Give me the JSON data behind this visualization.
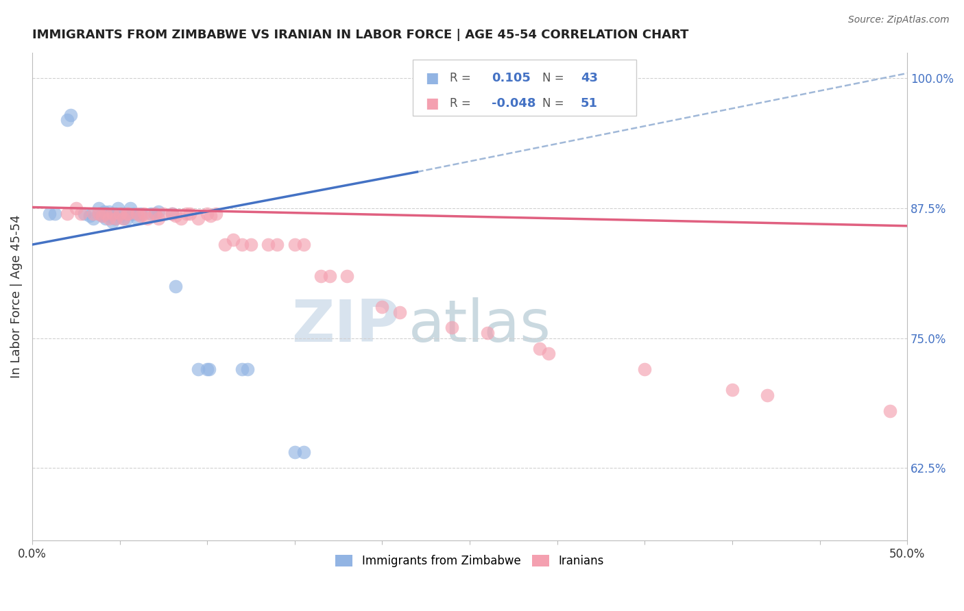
{
  "title": "IMMIGRANTS FROM ZIMBABWE VS IRANIAN IN LABOR FORCE | AGE 45-54 CORRELATION CHART",
  "source": "Source: ZipAtlas.com",
  "ylabel": "In Labor Force | Age 45-54",
  "ylabel_right_ticks": [
    "62.5%",
    "75.0%",
    "87.5%",
    "100.0%"
  ],
  "ylabel_right_values": [
    0.625,
    0.75,
    0.875,
    1.0
  ],
  "xlim": [
    0.0,
    0.5
  ],
  "ylim": [
    0.555,
    1.025
  ],
  "legend1_r": "0.105",
  "legend1_n": "43",
  "legend2_r": "-0.048",
  "legend2_n": "51",
  "zimbabwe_color": "#92B4E3",
  "iran_color": "#F4A0B0",
  "blue_line_color": "#4472C4",
  "pink_line_color": "#E06080",
  "dashed_line_color": "#A0B8D8",
  "watermark_zip": "ZIP",
  "watermark_atlas": "atlas",
  "watermark_color_zip": "#C8D8E8",
  "watermark_color_atlas": "#B0C8D8",
  "zimbabwe_x": [
    0.01,
    0.013,
    0.02,
    0.022,
    0.03,
    0.033,
    0.035,
    0.038,
    0.038,
    0.04,
    0.04,
    0.041,
    0.042,
    0.043,
    0.044,
    0.044,
    0.045,
    0.046,
    0.047,
    0.048,
    0.049,
    0.05,
    0.051,
    0.052,
    0.053,
    0.054,
    0.055,
    0.056,
    0.058,
    0.06,
    0.062,
    0.068,
    0.07,
    0.072,
    0.08,
    0.082,
    0.095,
    0.1,
    0.101,
    0.12,
    0.123,
    0.15,
    0.155
  ],
  "zimbabwe_y": [
    0.87,
    0.87,
    0.96,
    0.965,
    0.87,
    0.868,
    0.865,
    0.87,
    0.875,
    0.868,
    0.87,
    0.872,
    0.865,
    0.87,
    0.868,
    0.872,
    0.87,
    0.862,
    0.865,
    0.87,
    0.875,
    0.868,
    0.87,
    0.865,
    0.87,
    0.865,
    0.87,
    0.875,
    0.87,
    0.865,
    0.87,
    0.87,
    0.87,
    0.872,
    0.87,
    0.8,
    0.72,
    0.72,
    0.72,
    0.72,
    0.72,
    0.64,
    0.64
  ],
  "iran_x": [
    0.02,
    0.025,
    0.028,
    0.035,
    0.038,
    0.04,
    0.042,
    0.044,
    0.046,
    0.048,
    0.05,
    0.052,
    0.054,
    0.055,
    0.06,
    0.062,
    0.064,
    0.066,
    0.07,
    0.072,
    0.075,
    0.08,
    0.082,
    0.085,
    0.088,
    0.09,
    0.095,
    0.1,
    0.102,
    0.105,
    0.11,
    0.115,
    0.12,
    0.125,
    0.135,
    0.14,
    0.15,
    0.155,
    0.165,
    0.17,
    0.18,
    0.2,
    0.21,
    0.24,
    0.26,
    0.29,
    0.295,
    0.35,
    0.4,
    0.42,
    0.49
  ],
  "iran_y": [
    0.87,
    0.875,
    0.87,
    0.87,
    0.87,
    0.868,
    0.87,
    0.865,
    0.87,
    0.865,
    0.87,
    0.865,
    0.87,
    0.87,
    0.87,
    0.868,
    0.87,
    0.865,
    0.87,
    0.865,
    0.87,
    0.87,
    0.868,
    0.865,
    0.87,
    0.87,
    0.865,
    0.87,
    0.868,
    0.87,
    0.84,
    0.845,
    0.84,
    0.84,
    0.84,
    0.84,
    0.84,
    0.84,
    0.81,
    0.81,
    0.81,
    0.78,
    0.775,
    0.76,
    0.755,
    0.74,
    0.735,
    0.72,
    0.7,
    0.695,
    0.68
  ]
}
